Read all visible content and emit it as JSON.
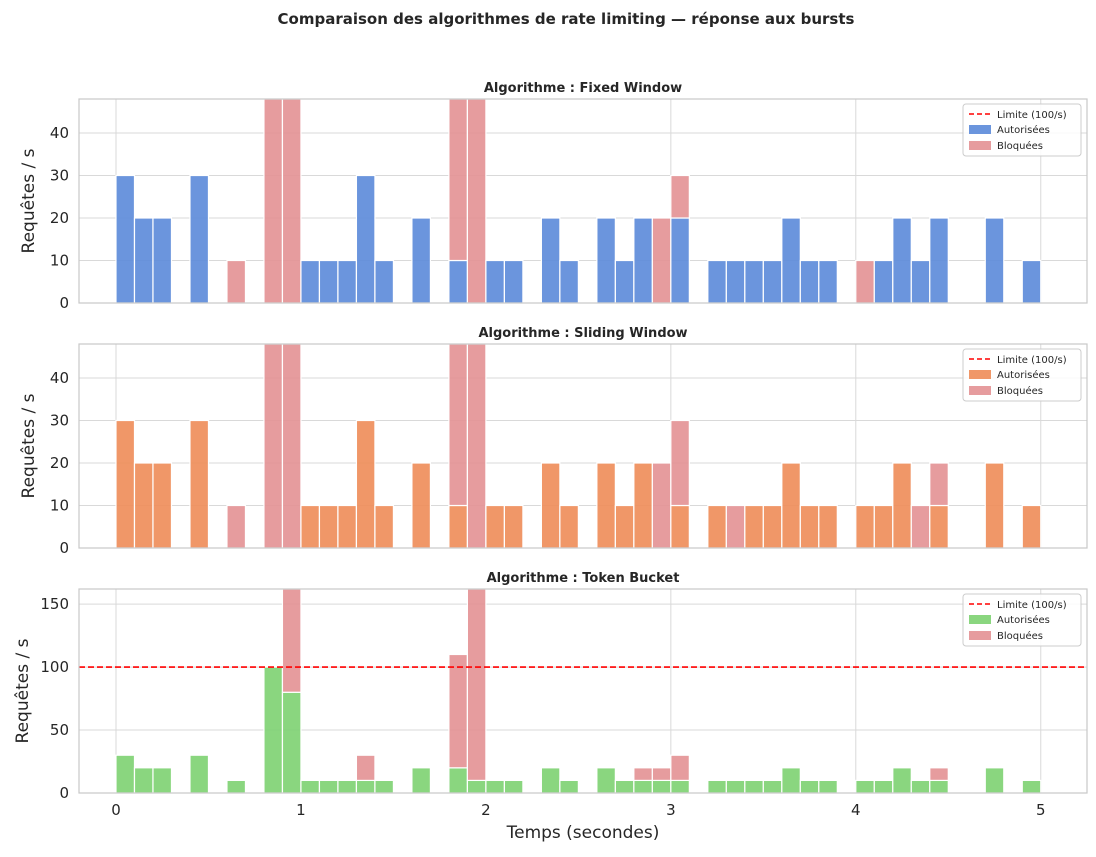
{
  "suptitle": "Comparaison des algorithmes de rate limiting — réponse aux bursts",
  "colors": {
    "blocked": "#e39194",
    "limit": "#ff0000",
    "grid": "#d9d9d9",
    "axis": "#c8c8c8"
  },
  "chart_data": [
    {
      "type": "bar",
      "stacked": true,
      "title": "Algorithme : Fixed Window",
      "ylabel": "Requêtes / s",
      "xlabel": "",
      "ylim": [
        0,
        48
      ],
      "yticks": [
        0,
        10,
        20,
        30,
        40
      ],
      "xlim": [
        -0.2,
        5.25
      ],
      "xticks": [
        0,
        1,
        2,
        3,
        4,
        5
      ],
      "show_xticklabels": false,
      "bar_width": 0.1,
      "allowed_color": "#5b8ad9",
      "limit": 100,
      "legend": {
        "position": "top-right",
        "labels": [
          "Limite (100/s)",
          "Autorisées",
          "Bloquées"
        ]
      },
      "x": [
        0.05,
        0.15,
        0.25,
        0.45,
        0.65,
        0.85,
        0.95,
        1.05,
        1.15,
        1.25,
        1.35,
        1.45,
        1.65,
        1.85,
        1.95,
        2.05,
        2.15,
        2.35,
        2.45,
        2.65,
        2.75,
        2.85,
        2.95,
        3.05,
        3.25,
        3.35,
        3.45,
        3.55,
        3.65,
        3.75,
        3.85,
        4.05,
        4.15,
        4.25,
        4.35,
        4.45,
        4.75,
        4.95
      ],
      "allowed": [
        30,
        20,
        20,
        30,
        0,
        0,
        0,
        10,
        10,
        10,
        30,
        10,
        20,
        10,
        0,
        10,
        10,
        20,
        10,
        20,
        10,
        20,
        0,
        20,
        10,
        10,
        10,
        10,
        20,
        10,
        10,
        0,
        10,
        20,
        10,
        20,
        20,
        10
      ],
      "blocked": [
        0,
        0,
        0,
        0,
        10,
        48,
        48,
        0,
        0,
        0,
        0,
        0,
        0,
        38,
        48,
        0,
        0,
        0,
        0,
        0,
        0,
        0,
        20,
        10,
        0,
        0,
        0,
        0,
        0,
        0,
        0,
        10,
        0,
        0,
        0,
        0,
        0,
        0
      ]
    },
    {
      "type": "bar",
      "stacked": true,
      "title": "Algorithme : Sliding Window",
      "ylabel": "Requêtes / s",
      "xlabel": "",
      "ylim": [
        0,
        48
      ],
      "yticks": [
        0,
        10,
        20,
        30,
        40
      ],
      "xlim": [
        -0.2,
        5.25
      ],
      "xticks": [
        0,
        1,
        2,
        3,
        4,
        5
      ],
      "show_xticklabels": false,
      "bar_width": 0.1,
      "allowed_color": "#ee8c58",
      "limit": 100,
      "legend": {
        "position": "top-right",
        "labels": [
          "Limite (100/s)",
          "Autorisées",
          "Bloquées"
        ]
      },
      "x": [
        0.05,
        0.15,
        0.25,
        0.45,
        0.65,
        0.85,
        0.95,
        1.05,
        1.15,
        1.25,
        1.35,
        1.45,
        1.65,
        1.85,
        1.95,
        2.05,
        2.15,
        2.35,
        2.45,
        2.65,
        2.75,
        2.85,
        2.95,
        3.05,
        3.25,
        3.35,
        3.45,
        3.55,
        3.65,
        3.75,
        3.85,
        4.05,
        4.15,
        4.25,
        4.35,
        4.45,
        4.75,
        4.95
      ],
      "allowed": [
        30,
        20,
        20,
        30,
        0,
        0,
        0,
        10,
        10,
        10,
        30,
        10,
        20,
        10,
        0,
        10,
        10,
        20,
        10,
        20,
        10,
        20,
        0,
        10,
        10,
        0,
        10,
        10,
        20,
        10,
        10,
        10,
        10,
        20,
        0,
        10,
        20,
        10
      ],
      "blocked": [
        0,
        0,
        0,
        0,
        10,
        48,
        48,
        0,
        0,
        0,
        0,
        0,
        0,
        38,
        48,
        0,
        0,
        0,
        0,
        0,
        0,
        0,
        20,
        20,
        0,
        10,
        0,
        0,
        0,
        0,
        0,
        0,
        0,
        0,
        10,
        10,
        0,
        0
      ]
    },
    {
      "type": "bar",
      "stacked": true,
      "title": "Algorithme : Token Bucket",
      "ylabel": "Requêtes / s",
      "xlabel": "Temps (secondes)",
      "ylim": [
        0,
        162
      ],
      "yticks": [
        0,
        50,
        100,
        150
      ],
      "xlim": [
        -0.2,
        5.25
      ],
      "xticks": [
        0,
        1,
        2,
        3,
        4,
        5
      ],
      "show_xticklabels": true,
      "bar_width": 0.1,
      "allowed_color": "#7dd171",
      "limit": 100,
      "legend": {
        "position": "top-right",
        "labels": [
          "Limite (100/s)",
          "Autorisées",
          "Bloquées"
        ]
      },
      "x": [
        0.05,
        0.15,
        0.25,
        0.45,
        0.65,
        0.85,
        0.95,
        1.05,
        1.15,
        1.25,
        1.35,
        1.45,
        1.65,
        1.85,
        1.95,
        2.05,
        2.15,
        2.35,
        2.45,
        2.65,
        2.75,
        2.85,
        2.95,
        3.05,
        3.25,
        3.35,
        3.45,
        3.55,
        3.65,
        3.75,
        3.85,
        4.05,
        4.15,
        4.25,
        4.35,
        4.45,
        4.75,
        4.95
      ],
      "allowed": [
        30,
        20,
        20,
        30,
        10,
        100,
        80,
        10,
        10,
        10,
        10,
        10,
        20,
        20,
        10,
        10,
        10,
        20,
        10,
        20,
        10,
        10,
        10,
        10,
        10,
        10,
        10,
        10,
        20,
        10,
        10,
        10,
        10,
        20,
        10,
        10,
        20,
        10
      ],
      "blocked": [
        0,
        0,
        0,
        0,
        0,
        0,
        82,
        0,
        0,
        0,
        20,
        0,
        0,
        90,
        152,
        0,
        0,
        0,
        0,
        0,
        0,
        10,
        10,
        20,
        0,
        0,
        0,
        0,
        0,
        0,
        0,
        0,
        0,
        0,
        0,
        10,
        0,
        0
      ]
    }
  ]
}
